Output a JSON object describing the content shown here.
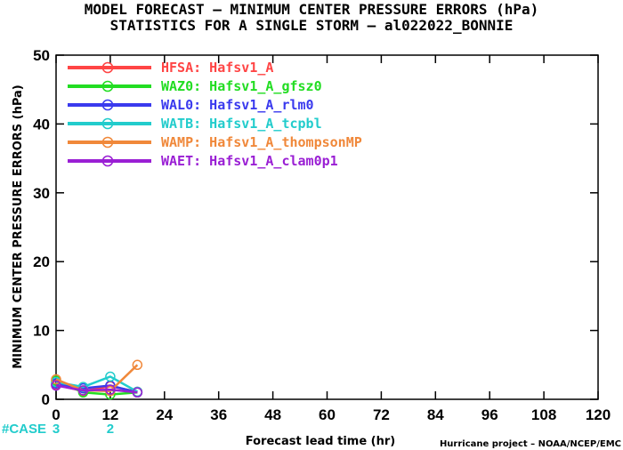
{
  "title": {
    "line1": "MODEL FORECAST – MINIMUM CENTER PRESSURE ERRORS (hPa)",
    "line2": "STATISTICS FOR A SINGLE STORM – al022022_BONNIE"
  },
  "credit": "Hurricane project – NOAA/NCEP/EMC",
  "chart_data": {
    "type": "line",
    "xlabel": "Forecast lead time (hr)",
    "ylabel": "MINIMUM CENTER PRESSURE ERRORS (hPa)",
    "xlim": [
      0,
      120
    ],
    "ylim": [
      0,
      50
    ],
    "xticks": [
      0,
      12,
      24,
      36,
      48,
      60,
      72,
      84,
      96,
      108,
      120
    ],
    "yticks": [
      0,
      10,
      20,
      30,
      40,
      50
    ],
    "legend_position": "top-left",
    "grid": false,
    "series": [
      {
        "name": "HFSA: Hafsv1_A",
        "color": "#ff4545",
        "x": [
          0,
          6,
          12,
          18
        ],
        "y": [
          2.1,
          1.2,
          1.9,
          1.1
        ]
      },
      {
        "name": "WAZ0: Hafsv1_A_gfsz0",
        "color": "#22dd22",
        "x": [
          0,
          6,
          12,
          18
        ],
        "y": [
          2.7,
          1.0,
          0.7,
          1.0
        ]
      },
      {
        "name": "WAL0: Hafsv1_A_rlm0",
        "color": "#3a3aee",
        "x": [
          0,
          6,
          12,
          18
        ],
        "y": [
          2.3,
          1.6,
          2.0,
          1.0
        ]
      },
      {
        "name": "WATB: Hafsv1_A_tcpbl",
        "color": "#22cccc",
        "x": [
          0,
          6,
          12,
          18
        ],
        "y": [
          2.5,
          1.8,
          3.3,
          1.1
        ]
      },
      {
        "name": "WAMP: Hafsv1_A_thompsonMP",
        "color": "#f0883a",
        "x": [
          0,
          6,
          12,
          18
        ],
        "y": [
          2.9,
          1.3,
          1.2,
          5.0
        ]
      },
      {
        "name": "WAET: Hafsv1_A_clam0p1",
        "color": "#9a1fd4",
        "x": [
          0,
          6,
          12,
          18
        ],
        "y": [
          2.0,
          1.3,
          1.4,
          1.0
        ]
      }
    ],
    "case_counts": {
      "label": "#CASE",
      "color": "#22cccc",
      "entries": [
        {
          "x": 0,
          "count": "3"
        },
        {
          "x": 12,
          "count": "2"
        }
      ]
    }
  }
}
